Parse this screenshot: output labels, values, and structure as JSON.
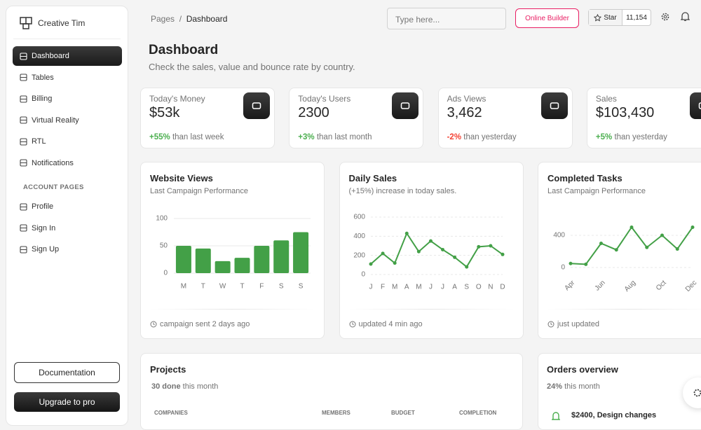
{
  "sidebar": {
    "brand": "Creative Tim",
    "nav": [
      {
        "label": "Dashboard",
        "active": true
      },
      {
        "label": "Tables"
      },
      {
        "label": "Billing"
      },
      {
        "label": "Virtual Reality"
      },
      {
        "label": "RTL"
      },
      {
        "label": "Notifications"
      }
    ],
    "section": "ACCOUNT PAGES",
    "account": [
      "Profile",
      "Sign In",
      "Sign Up"
    ],
    "buttons": [
      "Documentation",
      "Upgrade to pro"
    ]
  },
  "navbar": {
    "breadcrumb": [
      "Pages",
      "Dashboard"
    ],
    "search_placeholder": "Type here...",
    "builder": "Online Builder",
    "star": "Star",
    "star_count": "11,154"
  },
  "header": {
    "title": "Dashboard",
    "subtitle": "Check the sales, value and bounce rate by country."
  },
  "stats": [
    {
      "label": "Today's Money",
      "value": "$53k",
      "change": "+55%",
      "change_text": "than last week",
      "change_color": "#4caf50"
    },
    {
      "label": "Today's Users",
      "value": "2300",
      "change": "+3%",
      "change_text": "than last month",
      "change_color": "#4caf50"
    },
    {
      "label": "Ads Views",
      "value": "3,462",
      "change": "-2%",
      "change_text": "than yesterday",
      "change_color": "#f44335"
    },
    {
      "label": "Sales",
      "value": "$103,430",
      "change": "+5%",
      "change_text": "than yesterday",
      "change_color": "#4caf50"
    }
  ],
  "charts": [
    {
      "type": "bar",
      "title": "Website Views",
      "subtitle": "Last Campaign Performance",
      "categories": [
        "M",
        "T",
        "W",
        "T",
        "F",
        "S",
        "S"
      ],
      "values": [
        50,
        45,
        22,
        28,
        50,
        60,
        75
      ],
      "ylim": [
        0,
        100
      ],
      "yticks": [
        0,
        50,
        100
      ],
      "color": "#43a047",
      "grid": true,
      "footer": "campaign sent 2 days ago"
    },
    {
      "type": "line",
      "title": "Daily Sales",
      "subtitle": "(+15%) increase in today sales.",
      "categories": [
        "J",
        "F",
        "M",
        "A",
        "M",
        "J",
        "J",
        "A",
        "S",
        "O",
        "N",
        "D"
      ],
      "values": [
        110,
        220,
        120,
        430,
        240,
        350,
        260,
        180,
        80,
        290,
        300,
        210
      ],
      "ylim": [
        0,
        600
      ],
      "yticks": [
        0,
        200,
        400,
        600
      ],
      "color": "#43a047",
      "grid": true,
      "footer": "updated 4 min ago"
    },
    {
      "type": "line",
      "title": "Completed Tasks",
      "subtitle": "Last Campaign Performance",
      "categories": [
        "Apr",
        null,
        "Jun",
        null,
        "Aug",
        null,
        "Oct",
        null,
        "Dec"
      ],
      "values": [
        50,
        40,
        300,
        220,
        500,
        250,
        400,
        230,
        500
      ],
      "ylim": [
        0,
        600
      ],
      "yticks": [
        0,
        400
      ],
      "color": "#43a047",
      "grid": true,
      "footer": "just updated"
    }
  ],
  "projects": {
    "title": "Projects",
    "done": "30 done",
    "done_text": "this month",
    "columns": [
      "COMPANIES",
      "MEMBERS",
      "BUDGET",
      "COMPLETION"
    ]
  },
  "orders": {
    "title": "Orders overview",
    "percent": "24%",
    "percent_text": "this month",
    "items": [
      "$2400, Design changes"
    ]
  }
}
